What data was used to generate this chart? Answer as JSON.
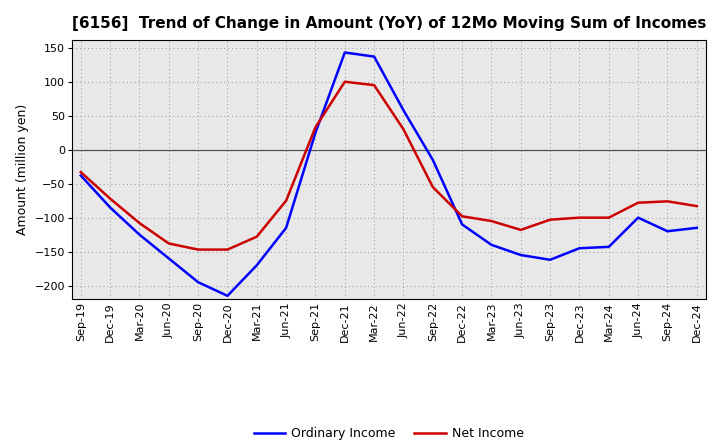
{
  "title": "[6156]  Trend of Change in Amount (YoY) of 12Mo Moving Sum of Incomes",
  "ylabel": "Amount (million yen)",
  "ylim": [
    -220,
    162
  ],
  "yticks": [
    -200,
    -150,
    -100,
    -50,
    0,
    50,
    100,
    150
  ],
  "plot_bg_color": "#e8e8e8",
  "fig_bg_color": "#ffffff",
  "x_labels": [
    "Sep-19",
    "Dec-19",
    "Mar-20",
    "Jun-20",
    "Sep-20",
    "Dec-20",
    "Mar-21",
    "Jun-21",
    "Sep-21",
    "Dec-21",
    "Mar-22",
    "Jun-22",
    "Sep-22",
    "Dec-22",
    "Mar-23",
    "Jun-23",
    "Sep-23",
    "Dec-23",
    "Mar-24",
    "Jun-24",
    "Sep-24",
    "Dec-24"
  ],
  "ordinary_income": [
    -38,
    -85,
    -125,
    -160,
    -195,
    -215,
    -170,
    -115,
    25,
    143,
    137,
    58,
    -15,
    -110,
    -140,
    -155,
    -162,
    -145,
    -143,
    -100,
    -120,
    -115
  ],
  "net_income": [
    -33,
    -72,
    -108,
    -138,
    -147,
    -147,
    -128,
    -75,
    33,
    100,
    95,
    30,
    -55,
    -98,
    -105,
    -118,
    -103,
    -100,
    -100,
    -78,
    -76,
    -83
  ],
  "ordinary_color": "#0000ff",
  "net_color": "#cc0000",
  "line_width": 1.8,
  "legend_labels": [
    "Ordinary Income",
    "Net Income"
  ],
  "title_fontsize": 11,
  "tick_fontsize": 8,
  "ylabel_fontsize": 9,
  "legend_fontsize": 9
}
